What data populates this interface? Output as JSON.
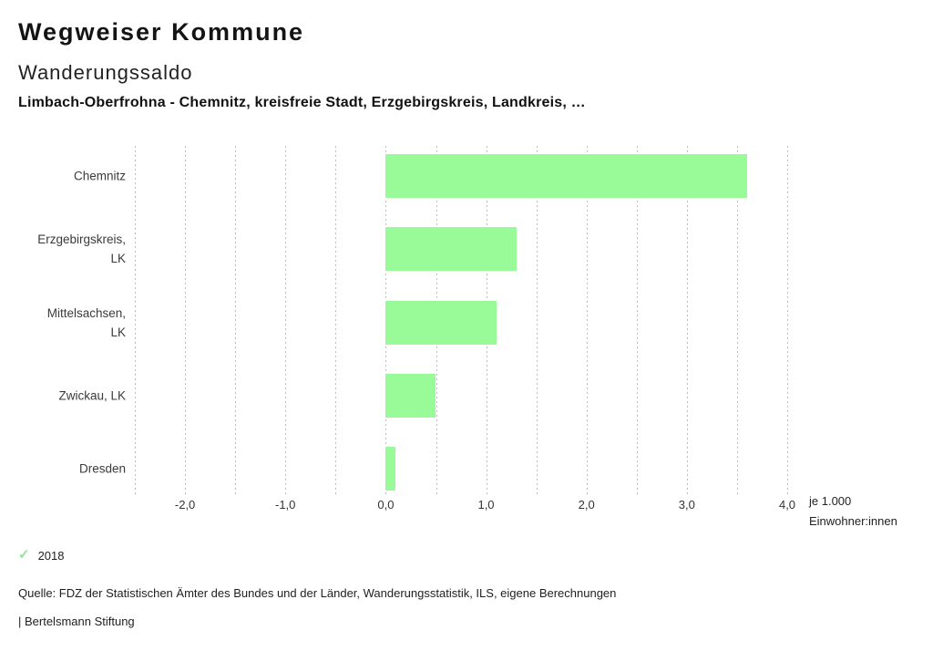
{
  "header": {
    "title": "Wegweiser Kommune",
    "subtitle": "Wanderungssaldo",
    "comparison_line": "Limbach-Oberfrohna - Chemnitz, kreisfreie Stadt, Erzgebirgskreis, Landkreis, …"
  },
  "chart_data": {
    "type": "bar",
    "orientation": "horizontal",
    "title": "Wanderungssaldo",
    "xlabel": "je 1.000 Einwohner:innen",
    "ylabel": "",
    "categories": [
      "Chemnitz",
      "Erzgebirgskreis,\nLK",
      "Mittelsachsen,\nLK",
      "Zwickau, LK",
      "Dresden"
    ],
    "series": [
      {
        "name": "2018",
        "values": [
          3.6,
          1.3,
          1.1,
          0.5,
          0.1
        ]
      }
    ],
    "xlim": [
      -2.5,
      4.0
    ],
    "gridline_step": 0.5,
    "grid": true,
    "x_ticks": [
      {
        "label": "-2,0",
        "value": -2
      },
      {
        "label": "-1,0",
        "value": -1
      },
      {
        "label": "0,0",
        "value": 0
      },
      {
        "label": "1,0",
        "value": 1
      },
      {
        "label": "2,0",
        "value": 2
      },
      {
        "label": "3,0",
        "value": 3
      },
      {
        "label": "4,0",
        "value": 4
      }
    ],
    "unit_label": "je 1.000\nEinwohner:innen",
    "bar_color": "#98fb98",
    "legend_position": "bottom-left"
  },
  "legend": {
    "check_glyph": "✓",
    "check_color": "#94e697",
    "year": "2018"
  },
  "footer": {
    "source": "Quelle: FDZ der Statistischen Ämter des Bundes und der Länder, Wanderungsstatistik, ILS, eigene Berechnungen",
    "branding": "| Bertelsmann Stiftung"
  }
}
